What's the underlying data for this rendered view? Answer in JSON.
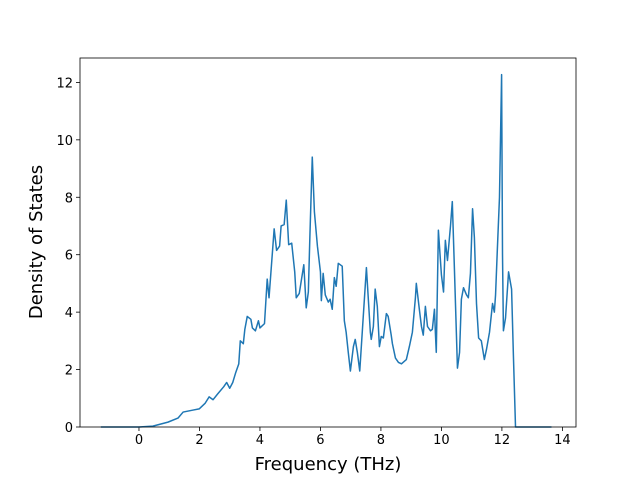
{
  "chart_data": {
    "type": "line",
    "x_label": "Frequency (THz)",
    "y_label": "Density of States",
    "x": [
      -1.26,
      0,
      0.46,
      0.96,
      1.29,
      1.46,
      1.79,
      1.99,
      2.19,
      2.32,
      2.45,
      2.6,
      2.8,
      2.9,
      3.0,
      3.1,
      3.2,
      3.3,
      3.35,
      3.45,
      3.5,
      3.58,
      3.7,
      3.75,
      3.85,
      3.95,
      4.0,
      4.15,
      4.24,
      4.3,
      4.47,
      4.55,
      4.65,
      4.7,
      4.8,
      4.87,
      4.95,
      5.05,
      5.15,
      5.2,
      5.3,
      5.45,
      5.53,
      5.6,
      5.65,
      5.73,
      5.8,
      5.9,
      6.0,
      6.03,
      6.09,
      6.16,
      6.26,
      6.32,
      6.39,
      6.46,
      6.52,
      6.59,
      6.72,
      6.79,
      6.85,
      6.92,
      6.99,
      7.09,
      7.15,
      7.22,
      7.3,
      7.52,
      7.65,
      7.68,
      7.75,
      7.81,
      7.88,
      7.95,
      8.01,
      8.08,
      8.18,
      8.24,
      8.34,
      8.38,
      8.48,
      8.58,
      8.68,
      8.84,
      8.94,
      9.04,
      9.14,
      9.17,
      9.27,
      9.34,
      9.4,
      9.47,
      9.54,
      9.64,
      9.7,
      9.77,
      9.8,
      9.83,
      9.9,
      10.0,
      10.07,
      10.13,
      10.2,
      10.3,
      10.36,
      10.43,
      10.53,
      10.6,
      10.66,
      10.73,
      10.83,
      10.89,
      10.96,
      11.03,
      11.09,
      11.16,
      11.23,
      11.32,
      11.42,
      11.49,
      11.59,
      11.69,
      11.75,
      11.79,
      11.85,
      11.92,
      11.99,
      12.02,
      12.05,
      12.12,
      12.22,
      12.32,
      12.38,
      12.45,
      13.64
    ],
    "series": [
      {
        "color": "#1f77b4",
        "values": [
          0,
          0,
          0.03,
          0.17,
          0.31,
          0.52,
          0.59,
          0.63,
          0.83,
          1.05,
          0.95,
          1.15,
          1.4,
          1.55,
          1.35,
          1.55,
          1.9,
          2.2,
          3.0,
          2.9,
          3.4,
          3.85,
          3.75,
          3.45,
          3.35,
          3.7,
          3.45,
          3.6,
          5.15,
          4.5,
          6.9,
          6.15,
          6.3,
          7.0,
          7.05,
          7.9,
          6.35,
          6.4,
          5.4,
          4.5,
          4.65,
          5.65,
          4.15,
          4.7,
          6.6,
          9.4,
          7.5,
          6.3,
          5.4,
          4.4,
          5.35,
          4.6,
          4.35,
          4.45,
          4.1,
          5.2,
          4.9,
          5.7,
          5.6,
          3.7,
          3.3,
          2.6,
          1.95,
          2.8,
          3.05,
          2.6,
          1.95,
          5.55,
          3.3,
          3.05,
          3.5,
          4.8,
          4.2,
          2.8,
          3.15,
          3.1,
          3.95,
          3.85,
          3.2,
          2.9,
          2.4,
          2.25,
          2.2,
          2.35,
          2.8,
          3.3,
          4.5,
          5.0,
          4.1,
          3.5,
          3.2,
          4.2,
          3.5,
          3.35,
          3.4,
          4.1,
          3.3,
          2.6,
          6.85,
          5.3,
          4.7,
          6.5,
          5.8,
          7.0,
          7.85,
          5.5,
          2.05,
          2.6,
          4.45,
          4.85,
          4.6,
          4.5,
          5.35,
          7.6,
          6.6,
          4.3,
          3.1,
          3.0,
          2.35,
          2.7,
          3.3,
          4.3,
          4.0,
          4.6,
          6.2,
          8.0,
          12.27,
          6.0,
          3.35,
          3.8,
          5.4,
          4.8,
          2.5,
          0,
          0
        ]
      }
    ],
    "xlim": [
      -1.95,
      14.45
    ],
    "ylim": [
      0,
      12.85
    ],
    "xticks": [
      0,
      2,
      4,
      6,
      8,
      10,
      12,
      14
    ],
    "yticks": [
      0,
      2,
      4,
      6,
      8,
      10,
      12
    ]
  }
}
